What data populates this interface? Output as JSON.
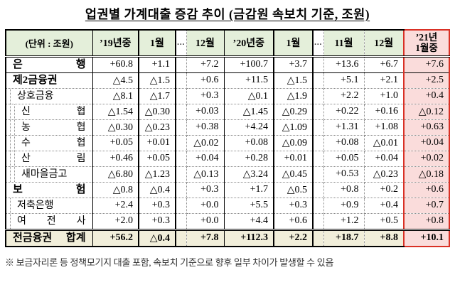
{
  "title": "업권별 가계대출 증감 추이 (금감원 속보치 기준, 조원)",
  "footnote": "※ 보금자리론 등 정책모기지 대출 포함, 속보치 기준으로 향후 일부 차이가 발생할 수 있음",
  "colors": {
    "header_bg": "#e4efda",
    "highlight_col_bg": "#fadcdb",
    "total_row_bg": "#f1eeda",
    "highlight_border": "#d93025"
  },
  "table": {
    "unit_header": "(단위 : 조원)",
    "col_headers": [
      "’19년중",
      "1월",
      "…",
      "12월",
      "’20년중",
      "1월",
      "…",
      "11월",
      "12월",
      "’21년\n1월중"
    ],
    "rows": [
      {
        "label": "은 행",
        "level": 0,
        "bold": true,
        "total": false,
        "values": [
          "+60.8",
          "+1.1",
          "",
          "+7.2",
          "+100.7",
          "+3.7",
          "",
          "+13.6",
          "+6.7",
          "+7.6"
        ]
      },
      {
        "label": "제2금융권",
        "level": 0,
        "bold": true,
        "total": false,
        "values": [
          "△4.5",
          "△1.5",
          "",
          "+0.6",
          "+11.5",
          "△1.5",
          "",
          "+5.1",
          "+2.1",
          "+2.5"
        ]
      },
      {
        "label": "상호금융",
        "level": 1,
        "bold": false,
        "total": false,
        "values": [
          "△8.1",
          "△1.7",
          "",
          "+0.3",
          "△0.1",
          "△1.9",
          "",
          "+2.2",
          "+1.0",
          "+0.4"
        ]
      },
      {
        "label": "신 협",
        "level": 2,
        "bold": false,
        "total": false,
        "values": [
          "△1.54",
          "△0.30",
          "",
          "+0.03",
          "△1.45",
          "△0.29",
          "",
          "+0.22",
          "+0.16",
          "△0.12"
        ]
      },
      {
        "label": "농 협",
        "level": 2,
        "bold": false,
        "total": false,
        "values": [
          "△0.30",
          "△0.23",
          "",
          "+0.38",
          "+4.24",
          "△1.09",
          "",
          "+1.31",
          "+1.08",
          "+0.63"
        ]
      },
      {
        "label": "수 협",
        "level": 2,
        "bold": false,
        "total": false,
        "values": [
          "+0.05",
          "+0.01",
          "",
          "△0.02",
          "+0.08",
          "△0.09",
          "",
          "+0.08",
          "△0.01",
          "+0.04"
        ]
      },
      {
        "label": "산 림",
        "level": 2,
        "bold": false,
        "total": false,
        "values": [
          "+0.46",
          "+0.05",
          "",
          "+0.04",
          "+0.28",
          "+0.01",
          "",
          "+0.05",
          "+0.04",
          "+0.02"
        ]
      },
      {
        "label": "새마을금고",
        "level": 2,
        "bold": false,
        "total": false,
        "values": [
          "△6.80",
          "△1.23",
          "",
          "△0.13",
          "△3.24",
          "△0.45",
          "",
          "+0.53",
          "△0.23",
          "△0.18"
        ]
      },
      {
        "label": "보 험",
        "level": 0,
        "bold": true,
        "total": false,
        "values": [
          "△0.8",
          "△0.4",
          "",
          "+0.3",
          "+1.7",
          "△0.5",
          "",
          "+0.8",
          "+0.2",
          "+0.6"
        ]
      },
      {
        "label": "저축은행",
        "level": 1,
        "bold": false,
        "total": false,
        "values": [
          "+2.4",
          "+0.3",
          "",
          "+0.0",
          "+5.5",
          "+0.3",
          "",
          "+0.9",
          "+0.4",
          "+0.7"
        ]
      },
      {
        "label": "여 전 사",
        "level": 1,
        "bold": false,
        "total": false,
        "values": [
          "+2.0",
          "+0.3",
          "",
          "+0.0",
          "+4.4",
          "+0.6",
          "",
          "+1.2",
          "+0.5",
          "+0.8"
        ]
      },
      {
        "label": "전금융권 합계",
        "level": 0,
        "bold": true,
        "total": true,
        "values": [
          "+56.2",
          "△0.4",
          "",
          "+7.8",
          "+112.3",
          "+2.2",
          "",
          "+18.7",
          "+8.8",
          "+10.1"
        ]
      }
    ]
  }
}
